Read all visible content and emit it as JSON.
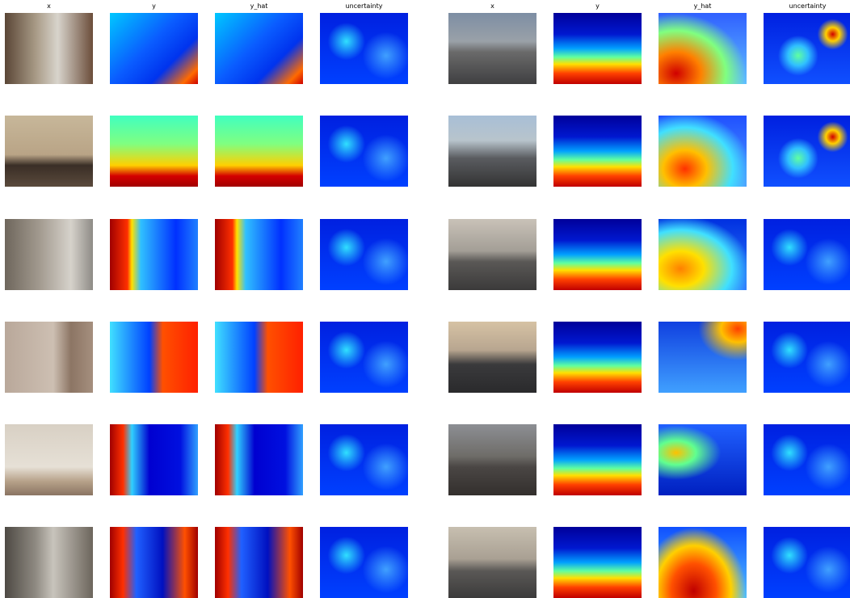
{
  "panels": [
    {
      "headers": [
        "x",
        "y",
        "y_hat",
        "uncertainty"
      ]
    },
    {
      "headers": [
        "x",
        "y",
        "y_hat",
        "uncertainty"
      ]
    }
  ]
}
